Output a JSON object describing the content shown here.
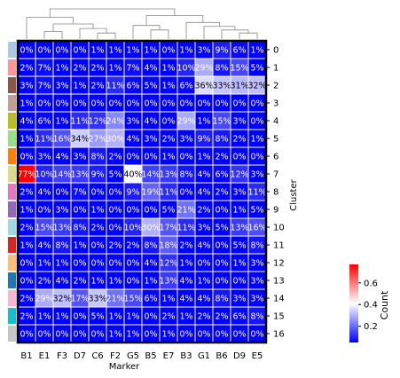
{
  "chart_data": {
    "type": "heatmap",
    "title": "",
    "xlabel": "Marker",
    "ylabel": "Cluster",
    "x_categories": [
      "B1",
      "E1",
      "F3",
      "D7",
      "C6",
      "F2",
      "G5",
      "B5",
      "E7",
      "B3",
      "G1",
      "B6",
      "D9",
      "E5"
    ],
    "y_categories": [
      "0",
      "1",
      "2",
      "3",
      "4",
      "5",
      "6",
      "7",
      "8",
      "9",
      "10",
      "11",
      "12",
      "13",
      "14",
      "15",
      "16"
    ],
    "values": [
      [
        0,
        0,
        0,
        0,
        1,
        1,
        1,
        1,
        0,
        1,
        3,
        9,
        6,
        1
      ],
      [
        2,
        7,
        1,
        2,
        2,
        1,
        7,
        4,
        1,
        10,
        29,
        8,
        15,
        5
      ],
      [
        3,
        7,
        3,
        1,
        2,
        11,
        6,
        5,
        1,
        6,
        36,
        33,
        31,
        32
      ],
      [
        1,
        0,
        0,
        0,
        0,
        0,
        0,
        0,
        0,
        0,
        0,
        0,
        0,
        0
      ],
      [
        4,
        6,
        1,
        11,
        12,
        24,
        3,
        4,
        0,
        29,
        1,
        15,
        3,
        0
      ],
      [
        1,
        11,
        16,
        34,
        27,
        30,
        4,
        3,
        2,
        3,
        9,
        8,
        2,
        1
      ],
      [
        0,
        3,
        4,
        3,
        8,
        2,
        0,
        0,
        1,
        0,
        1,
        2,
        0,
        0
      ],
      [
        77,
        10,
        14,
        13,
        9,
        5,
        40,
        14,
        13,
        8,
        4,
        6,
        12,
        3
      ],
      [
        2,
        4,
        0,
        7,
        0,
        0,
        9,
        19,
        11,
        0,
        4,
        2,
        3,
        11
      ],
      [
        1,
        0,
        3,
        0,
        1,
        0,
        0,
        0,
        5,
        21,
        2,
        0,
        1,
        5
      ],
      [
        2,
        15,
        13,
        8,
        2,
        0,
        10,
        30,
        17,
        11,
        3,
        5,
        13,
        16
      ],
      [
        1,
        4,
        8,
        1,
        0,
        2,
        2,
        8,
        18,
        2,
        4,
        0,
        5,
        8
      ],
      [
        0,
        1,
        1,
        0,
        0,
        0,
        0,
        4,
        12,
        1,
        0,
        0,
        1,
        3
      ],
      [
        0,
        2,
        4,
        2,
        1,
        1,
        0,
        1,
        13,
        4,
        1,
        0,
        0,
        3
      ],
      [
        2,
        29,
        32,
        17,
        33,
        21,
        15,
        6,
        1,
        4,
        4,
        8,
        3,
        3
      ],
      [
        2,
        1,
        1,
        0,
        5,
        1,
        1,
        0,
        2,
        1,
        2,
        2,
        6,
        8
      ],
      [
        0,
        0,
        0,
        0,
        0,
        1,
        1,
        0,
        1,
        0,
        0,
        0,
        0,
        0
      ]
    ],
    "annotation_format": "percent",
    "colorbar": {
      "label": "Count",
      "ticks": [
        0.2,
        0.4,
        0.6
      ],
      "tick_labels": [
        "0.2",
        "0.4",
        "0.6"
      ],
      "range": [
        0.05,
        0.77
      ],
      "colors": [
        "#0000ff",
        "#ffffff",
        "#ff0000"
      ]
    },
    "row_colors": [
      "#aec7e8",
      "#ff9896",
      "#8c564b",
      "#c49c94",
      "#bcbd22",
      "#98df8a",
      "#ff7f0e",
      "#dbdb8d",
      "#e377c2",
      "#9467bd",
      "#9edae5",
      "#d62728",
      "#ffbb78",
      "#1f77b4",
      "#f7b6d2",
      "#17becf",
      "#c7c7c7"
    ],
    "column_dendrogram": true,
    "grid": true,
    "legend": "colorbar-right"
  }
}
